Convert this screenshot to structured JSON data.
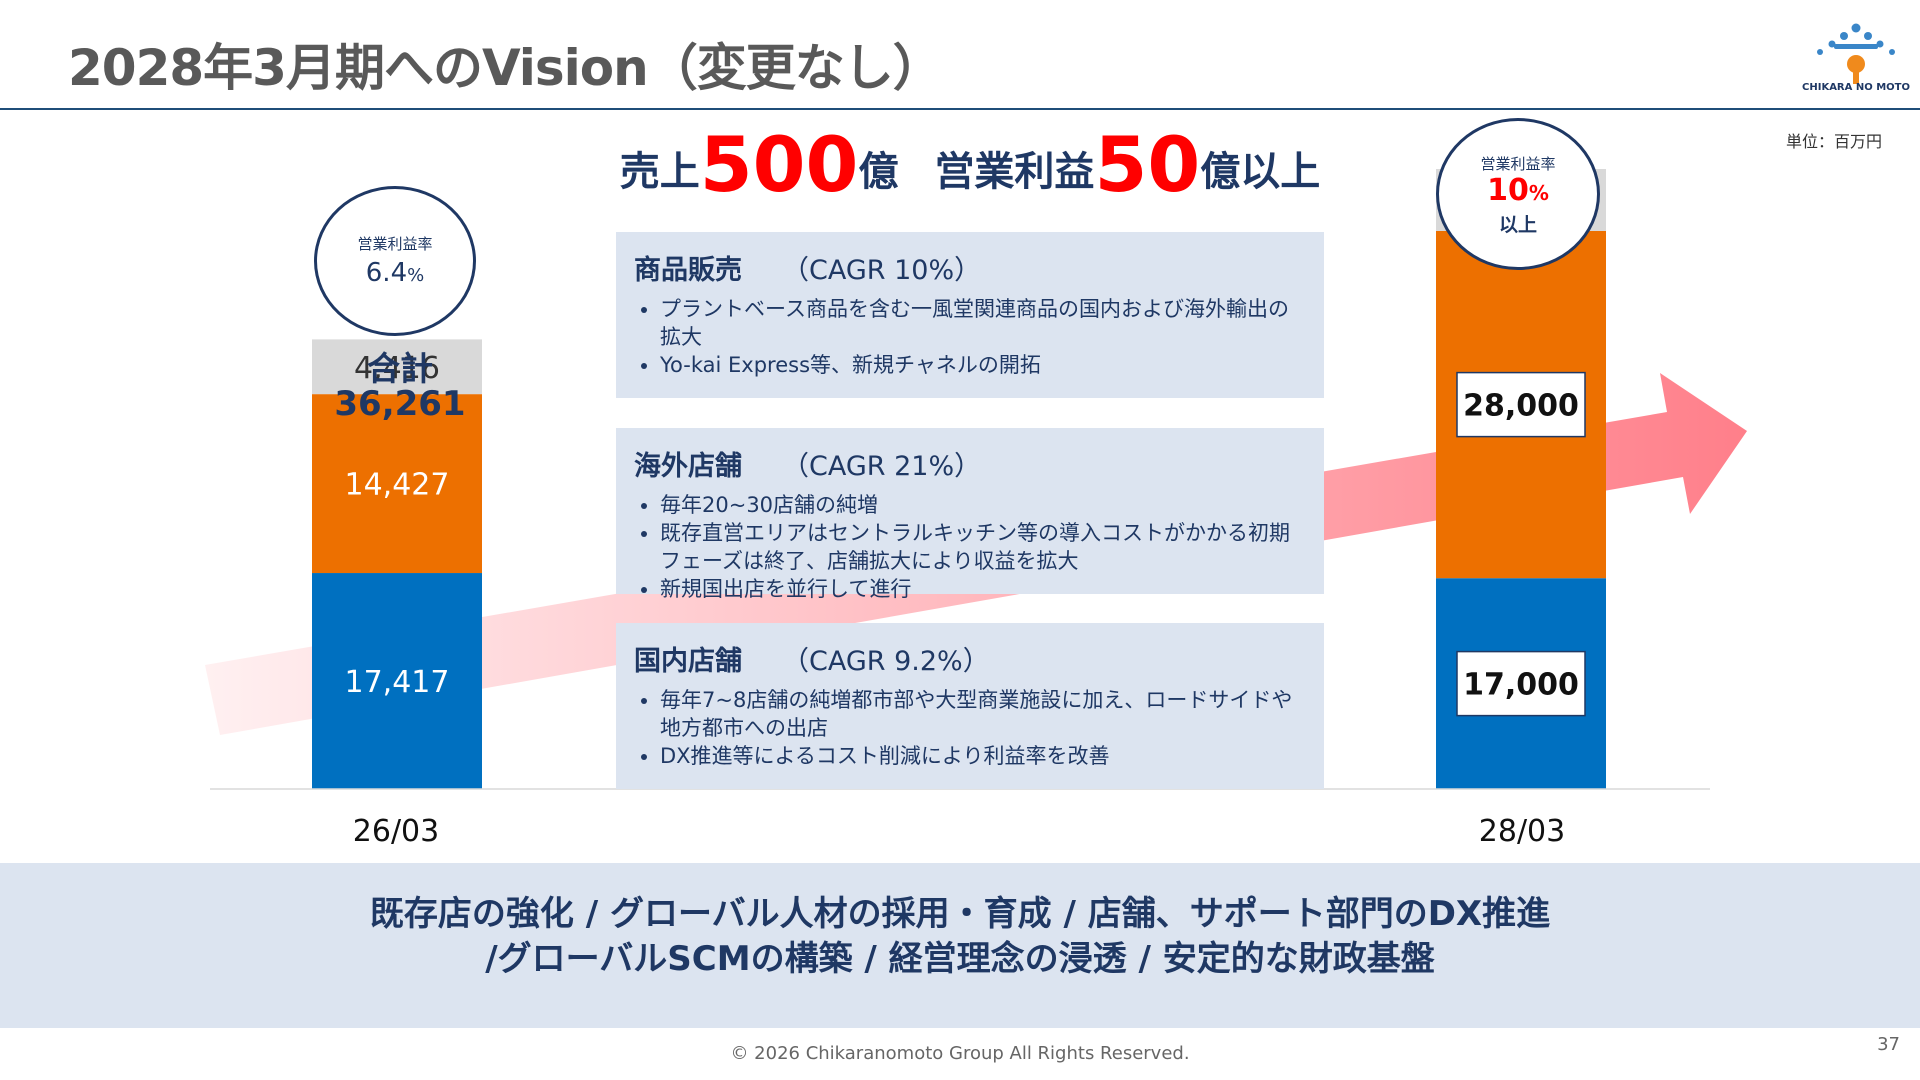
{
  "header": {
    "title": "2028年3月期へのVision（変更なし）",
    "logo_text": "CHIKARA NO MOTO",
    "unit": "単位：百万円"
  },
  "headline": {
    "part1": "売上",
    "sales_value": "500",
    "part2": "億",
    "part3": "営業利益",
    "profit_value": "50",
    "part4": "億以上"
  },
  "circles": {
    "left": {
      "label": "営業利益率",
      "value": "6.4",
      "unit": "%"
    },
    "right": {
      "label": "営業利益率",
      "value": "10",
      "unit": "%",
      "suffix": "以上"
    }
  },
  "total": {
    "label": "合計",
    "value": "36,261"
  },
  "panels": [
    {
      "title": "商品販売",
      "cagr": "（CAGR 10%）",
      "bullets": [
        "プラントベース商品を含む一風堂関連商品の国内および海外輸出の拡大",
        "Yo-kai Express等、新規チャネルの開拓"
      ]
    },
    {
      "title": "海外店舗",
      "cagr": "（CAGR 21%）",
      "bullets": [
        "毎年20~30店舗の純増",
        "既存直営エリアはセントラルキッチン等の導入コストがかかる初期フェーズは終了、店舗拡大により収益を拡大",
        "新規国出店を並行して進行"
      ]
    },
    {
      "title": "国内店舗",
      "cagr": "（CAGR 9.2%）",
      "bullets": [
        "毎年7~8店舗の純増都市部や大型商業施設に加え、ロードサイドや地方都市への出店",
        "DX推進等によるコスト削減により利益率を改善"
      ]
    }
  ],
  "chart_data": {
    "type": "bar",
    "stacked": true,
    "categories": [
      "26/03",
      "28/03"
    ],
    "series": [
      {
        "values": [
          17417,
          17000
        ],
        "labels": [
          "17,417",
          "17,000"
        ],
        "color": "#0070c0"
      },
      {
        "values": [
          14427,
          28000
        ],
        "labels": [
          "14,427",
          "28,000"
        ],
        "color": "#ed7000"
      },
      {
        "values": [
          4416,
          5000
        ],
        "labels": [
          "4,416",
          "5,000"
        ],
        "color": "#d9d9d9"
      }
    ],
    "ylim": [
      0,
      50000
    ],
    "grid": false
  },
  "bottom": {
    "line1": "既存店の強化 / グローバル人材の採用・育成 / 店舗、サポート部門のDX推進",
    "line2": "/グローバルSCMの構築 / 経営理念の浸透 / 安定的な財政基盤"
  },
  "footer": {
    "copyright": "© 2026 Chikaranomoto Group All Rights Reserved.",
    "page": "37"
  },
  "colors": {
    "navy": "#1f3864",
    "accent_red": "#ff0000",
    "panel_bg": "#dce4f0",
    "arrow": "#ff8c94"
  }
}
